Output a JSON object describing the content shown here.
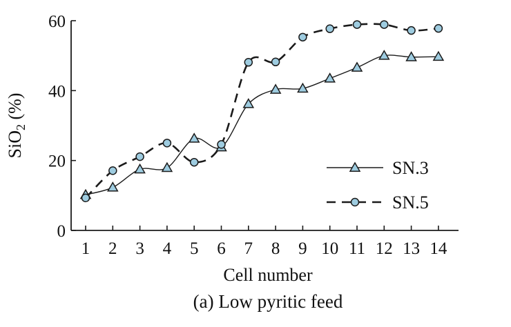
{
  "chart_data": {
    "type": "line",
    "caption": "(a) Low pyritic feed",
    "xlabel": "Cell number",
    "ylabel_main": "SiO",
    "ylabel_sub": "2",
    "ylabel_rest": " (%)",
    "ylim": [
      0,
      60
    ],
    "yticks": [
      0,
      20,
      40,
      60
    ],
    "categories": [
      1,
      2,
      3,
      4,
      5,
      6,
      7,
      8,
      9,
      10,
      11,
      12,
      13,
      14
    ],
    "grid": false,
    "legend_position": "right-center",
    "series": [
      {
        "name": "SN.3",
        "line_style": "solid",
        "marker": "triangle",
        "values": [
          10.2,
          12.3,
          17.5,
          17.9,
          26.3,
          23.8,
          36.2,
          40.3,
          40.6,
          43.5,
          46.6,
          50.0,
          49.6,
          49.7
        ]
      },
      {
        "name": "SN.5",
        "line_style": "dashed",
        "marker": "circle",
        "values": [
          9.3,
          17.1,
          21.1,
          25.0,
          19.5,
          24.6,
          48.1,
          48.2,
          55.3,
          57.7,
          58.9,
          58.9,
          57.2,
          57.8
        ]
      }
    ],
    "colors": {
      "marker_fill": "#9ecce0",
      "line": "#1a1a1a"
    }
  }
}
